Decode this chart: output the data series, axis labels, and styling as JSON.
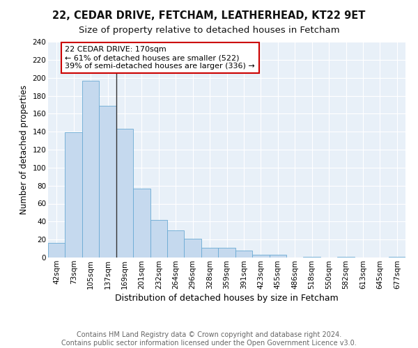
{
  "title1": "22, CEDAR DRIVE, FETCHAM, LEATHERHEAD, KT22 9ET",
  "title2": "Size of property relative to detached houses in Fetcham",
  "xlabel": "Distribution of detached houses by size in Fetcham",
  "ylabel": "Number of detached properties",
  "categories": [
    "42sqm",
    "73sqm",
    "105sqm",
    "137sqm",
    "169sqm",
    "201sqm",
    "232sqm",
    "264sqm",
    "296sqm",
    "328sqm",
    "359sqm",
    "391sqm",
    "423sqm",
    "455sqm",
    "486sqm",
    "518sqm",
    "550sqm",
    "582sqm",
    "613sqm",
    "645sqm",
    "677sqm"
  ],
  "values": [
    16,
    139,
    197,
    169,
    143,
    77,
    42,
    30,
    21,
    11,
    11,
    8,
    3,
    3,
    0,
    1,
    0,
    1,
    0,
    0,
    1
  ],
  "bar_color": "#c5d9ee",
  "bar_edge_color": "#6aaad4",
  "marker_line_color": "#333333",
  "annotation_box_color": "#ffffff",
  "annotation_box_edge": "#cc0000",
  "marker_label": "22 CEDAR DRIVE: 170sqm",
  "annotation_line1": "← 61% of detached houses are smaller (522)",
  "annotation_line2": "39% of semi-detached houses are larger (336) →",
  "ylim": [
    0,
    240
  ],
  "yticks": [
    0,
    20,
    40,
    60,
    80,
    100,
    120,
    140,
    160,
    180,
    200,
    220,
    240
  ],
  "background_color": "#e8f0f8",
  "grid_color": "#ffffff",
  "footer_line1": "Contains HM Land Registry data © Crown copyright and database right 2024.",
  "footer_line2": "Contains public sector information licensed under the Open Government Licence v3.0.",
  "title1_fontsize": 10.5,
  "title2_fontsize": 9.5,
  "xlabel_fontsize": 9,
  "ylabel_fontsize": 8.5,
  "tick_fontsize": 7.5,
  "annot_fontsize": 8,
  "footer_fontsize": 7
}
